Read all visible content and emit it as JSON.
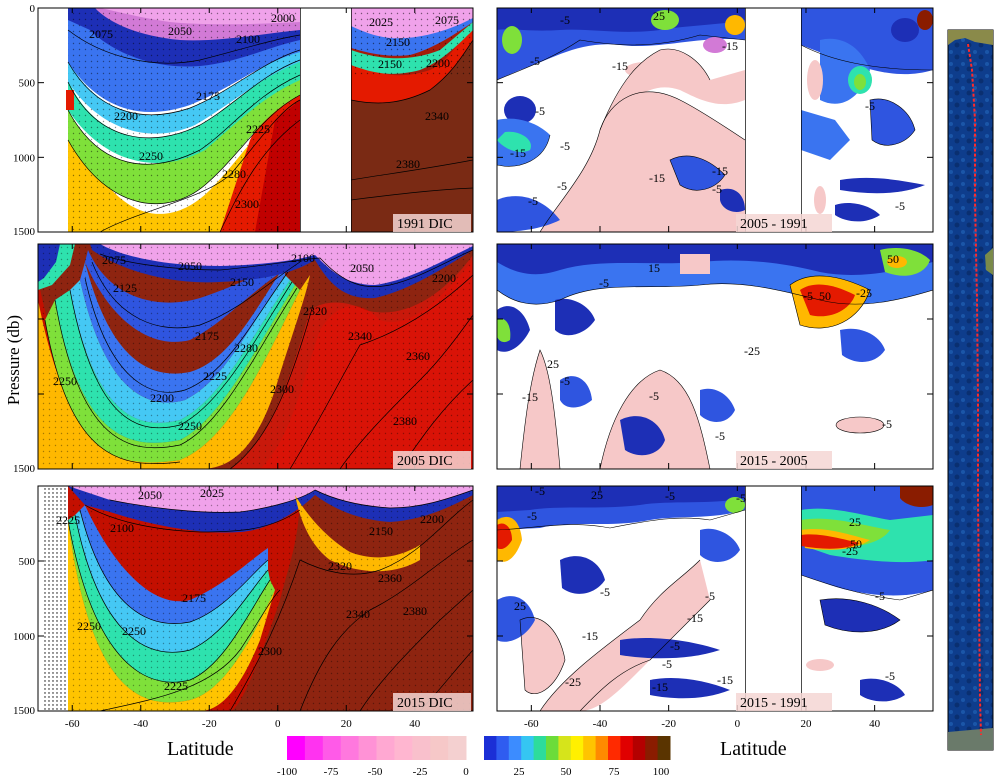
{
  "figure": {
    "ylabel": "Pressure (db)",
    "xlabel_left": "Latitude",
    "xlabel_right": "Latitude"
  },
  "colorbar": {
    "ticks": [
      "-100",
      "-75",
      "-50",
      "-25",
      "0",
      "25",
      "50",
      "75",
      "100"
    ],
    "negative_colors": [
      "#ff00ff",
      "#ff33f0",
      "#ff5ae8",
      "#ff78de",
      "#ff92d6",
      "#ffa8d2",
      "#ffb6d0",
      "#f9c0cc",
      "#f6c8c8",
      "#f4d0d0"
    ],
    "positive_colors": [
      "#1b2fd6",
      "#2f5cf0",
      "#3c8cff",
      "#35c6f2",
      "#2ddc9c",
      "#6cdc3a",
      "#d6e41b",
      "#fff000",
      "#ffc400",
      "#ff8a00",
      "#ff2a00",
      "#e00000",
      "#b40000",
      "#8a1c00",
      "#5a3400"
    ]
  },
  "chart_data": [
    {
      "type": "heatmap",
      "panel": "top-left",
      "label": "1991 DIC",
      "xlim": [
        -70,
        57
      ],
      "ylim": [
        1500,
        0
      ],
      "y_ticks": [
        "0",
        "500",
        "1000",
        "1500"
      ],
      "x_tick_labels": [],
      "contour_labels": [
        "2000",
        "2025",
        "2050",
        "2075",
        "2075",
        "2100",
        "2150",
        "2175",
        "2200",
        "2225",
        "2250",
        "2280",
        "2300",
        "2150",
        "2200",
        "2340",
        "2380"
      ],
      "gap_latitude_range": [
        0,
        28
      ]
    },
    {
      "type": "heatmap",
      "panel": "middle-left",
      "label": "2005 DIC",
      "xlim": [
        -70,
        57
      ],
      "ylim": [
        1500,
        0
      ],
      "y_ticks": [
        "",
        "",
        "",
        "1500"
      ],
      "x_tick_labels": [],
      "contour_labels": [
        "2075",
        "2050",
        "2100",
        "2125",
        "2050",
        "2150",
        "2175",
        "2225",
        "2200",
        "2250",
        "2250",
        "2280",
        "2300",
        "2320",
        "2340",
        "2360",
        "2380",
        "2200"
      ]
    },
    {
      "type": "heatmap",
      "panel": "bottom-left",
      "label": "2015 DIC",
      "xlim": [
        -70,
        57
      ],
      "ylim": [
        1500,
        0
      ],
      "y_ticks": [
        "",
        "500",
        "1000",
        "1500"
      ],
      "x_tick_labels": [
        "-60",
        "-40",
        "-20",
        "0",
        "20",
        "40"
      ],
      "contour_labels": [
        "2050",
        "2025",
        "2100",
        "2225",
        "2150",
        "2200",
        "2175",
        "2250",
        "2250",
        "2225",
        "2300",
        "2320",
        "2340",
        "2360",
        "2380"
      ]
    },
    {
      "type": "heatmap",
      "panel": "top-right",
      "label": "2005 - 1991",
      "xlim": [
        -70,
        57
      ],
      "ylim": [
        1500,
        0
      ],
      "contour_labels": [
        "-5",
        "25",
        "-5",
        "-15",
        "-5",
        "-5",
        "-5",
        "-15",
        "-15",
        "-5",
        "-15",
        "-5",
        "-5",
        "-15",
        "-5"
      ],
      "gap_latitude_range": [
        6,
        20
      ]
    },
    {
      "type": "heatmap",
      "panel": "middle-right",
      "label": "2015 - 2005",
      "xlim": [
        -70,
        57
      ],
      "ylim": [
        1500,
        0
      ],
      "contour_labels": [
        "15",
        "-5",
        "50",
        "-25",
        "50",
        "-25",
        "-5",
        "-5",
        "-15",
        "-5",
        "25",
        "-5",
        "-5"
      ]
    },
    {
      "type": "heatmap",
      "panel": "bottom-right",
      "label": "2015 - 1991",
      "xlim": [
        -70,
        57
      ],
      "ylim": [
        1500,
        0
      ],
      "x_tick_labels": [
        "-60",
        "-40",
        "-20",
        "0",
        "20",
        "40"
      ],
      "contour_labels": [
        "-5",
        "25",
        "-5",
        "-5",
        "-5",
        "25",
        "-15",
        "-5",
        "-5",
        "-5",
        "-15",
        "-15",
        "-25",
        "-5",
        "-15",
        "25",
        "-25",
        "50",
        "-5",
        "-5"
      ],
      "gap_latitude_range": [
        6,
        20
      ]
    }
  ]
}
